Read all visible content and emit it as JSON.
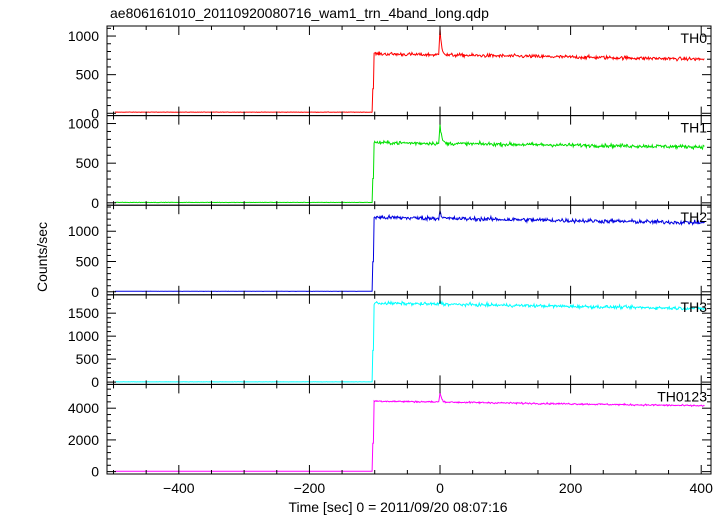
{
  "title": "ae806161010_20110920080716_wam1_trn_4band_long.qdp",
  "xlabel": "Time [sec] 0 = 2011/09/20 08:07:16",
  "ylabel": "Counts/sec",
  "chart_data": {
    "type": "line",
    "x": {
      "range": [
        -510,
        415
      ],
      "ticks": [
        -400,
        -200,
        0,
        200,
        400
      ],
      "tick_labels": [
        "−400",
        "−200",
        "0",
        "200",
        "400"
      ]
    },
    "event": {
      "onset_time": -103,
      "spike_time": 0
    },
    "panels": [
      {
        "name": "TH0",
        "color": "#ff0000",
        "ylim": [
          -30,
          1130
        ],
        "yticks": [
          0,
          500,
          1000
        ],
        "ytick_labels": [
          "0",
          "500",
          "1000"
        ],
        "background": 15,
        "onset_level": 770,
        "end_level": 700,
        "noise": 40,
        "spike_peak": 1110
      },
      {
        "name": "TH1",
        "color": "#00e000",
        "ylim": [
          -30,
          1100
        ],
        "yticks": [
          0,
          500,
          1000
        ],
        "ytick_labels": [
          "0",
          "500",
          "1000"
        ],
        "background": 5,
        "onset_level": 760,
        "end_level": 705,
        "noise": 40,
        "spike_peak": 1000
      },
      {
        "name": "TH2",
        "color": "#0000e0",
        "ylim": [
          -50,
          1430
        ],
        "yticks": [
          0,
          500,
          1000
        ],
        "ytick_labels": [
          "0",
          "500",
          "1000"
        ],
        "background": 8,
        "onset_level": 1230,
        "end_level": 1140,
        "noise": 60,
        "spike_peak": 1360
      },
      {
        "name": "TH3",
        "color": "#00ffff",
        "ylim": [
          -50,
          1900
        ],
        "yticks": [
          0,
          500,
          1000,
          1500
        ],
        "ytick_labels": [
          "0",
          "500",
          "1000",
          "1500"
        ],
        "background": 5,
        "onset_level": 1720,
        "end_level": 1600,
        "noise": 60,
        "spike_peak": 1800
      },
      {
        "name": "TH0123",
        "color": "#ff00ff",
        "ylim": [
          -150,
          5500
        ],
        "yticks": [
          0,
          2000,
          4000
        ],
        "ytick_labels": [
          "0",
          "2000",
          "4000"
        ],
        "background": 25,
        "onset_level": 4450,
        "end_level": 4150,
        "noise": 90,
        "spike_peak": 5050
      }
    ]
  }
}
